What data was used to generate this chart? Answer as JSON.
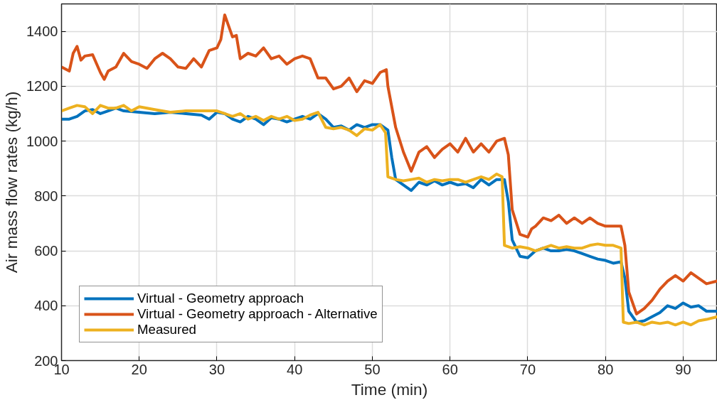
{
  "chart_data": {
    "type": "line",
    "xlabel": "Time (min)",
    "ylabel": "Air mass flow rates (kg/h)",
    "xlim": [
      10,
      94.4
    ],
    "ylim": [
      200,
      1500
    ],
    "xticks": [
      10,
      20,
      30,
      40,
      50,
      60,
      70,
      80,
      90
    ],
    "yticks": [
      200,
      400,
      600,
      800,
      1000,
      1200,
      1400
    ],
    "grid": true,
    "legend": "bottom left",
    "line_style": "solid",
    "series": [
      {
        "name": "Virtual - Geometry approach",
        "color": "#0072bd",
        "x": [
          10,
          11,
          12,
          13,
          14,
          15,
          16,
          17,
          18,
          20,
          22,
          24,
          26,
          28,
          29,
          30,
          31,
          32,
          33,
          34,
          35,
          36,
          37,
          38,
          39,
          40,
          41,
          42,
          43,
          44,
          45,
          46,
          47,
          48,
          49,
          50,
          51,
          52,
          52.5,
          53,
          54,
          55,
          56,
          57,
          58,
          59,
          60,
          61,
          62,
          63,
          64,
          65,
          66,
          67,
          67.5,
          68,
          69,
          70,
          71,
          72,
          73,
          74,
          75,
          76,
          77,
          78,
          79,
          80,
          81,
          82,
          82.5,
          83,
          84,
          85,
          86,
          87,
          88,
          89,
          90,
          91,
          92,
          93,
          94.4
        ],
        "values": [
          1080,
          1080,
          1090,
          1110,
          1115,
          1100,
          1110,
          1120,
          1110,
          1105,
          1100,
          1105,
          1100,
          1095,
          1080,
          1105,
          1100,
          1080,
          1070,
          1090,
          1080,
          1060,
          1085,
          1080,
          1070,
          1080,
          1090,
          1080,
          1100,
          1080,
          1050,
          1055,
          1040,
          1060,
          1050,
          1060,
          1060,
          1040,
          940,
          860,
          840,
          820,
          850,
          840,
          855,
          840,
          850,
          840,
          845,
          830,
          860,
          840,
          860,
          860,
          780,
          640,
          580,
          575,
          600,
          610,
          600,
          600,
          605,
          600,
          590,
          580,
          570,
          565,
          555,
          560,
          500,
          380,
          340,
          345,
          360,
          375,
          400,
          390,
          410,
          395,
          400,
          380,
          380
        ]
      },
      {
        "name": "Virtual - Geometry approach - Alternative",
        "color": "#d95319",
        "x": [
          10,
          11,
          11.5,
          12,
          12.5,
          13,
          14,
          15,
          15.5,
          16,
          17,
          18,
          19,
          20,
          21,
          22,
          23,
          24,
          25,
          26,
          27,
          28,
          29,
          30,
          30.5,
          31,
          31.5,
          32,
          32.5,
          33,
          34,
          35,
          36,
          37,
          38,
          39,
          40,
          41,
          42,
          43,
          44,
          45,
          46,
          47,
          48,
          49,
          50,
          51,
          51.8,
          52,
          53,
          54,
          55,
          56,
          57,
          58,
          59,
          60,
          61,
          62,
          63,
          64,
          65,
          66,
          67,
          67.5,
          68,
          69,
          70,
          70.5,
          71,
          72,
          73,
          74,
          75,
          76,
          77,
          78,
          79,
          80,
          81,
          82,
          82.5,
          83,
          84,
          85,
          86,
          87,
          88,
          89,
          90,
          91,
          92,
          93,
          94.4
        ],
        "values": [
          1270,
          1255,
          1320,
          1345,
          1295,
          1310,
          1315,
          1250,
          1225,
          1255,
          1270,
          1320,
          1290,
          1280,
          1265,
          1300,
          1320,
          1300,
          1270,
          1265,
          1300,
          1270,
          1330,
          1340,
          1370,
          1460,
          1420,
          1380,
          1385,
          1300,
          1320,
          1310,
          1340,
          1300,
          1310,
          1280,
          1300,
          1310,
          1300,
          1230,
          1230,
          1190,
          1200,
          1230,
          1180,
          1220,
          1210,
          1250,
          1260,
          1200,
          1050,
          960,
          890,
          960,
          980,
          940,
          970,
          990,
          960,
          1010,
          960,
          990,
          960,
          1000,
          1010,
          950,
          750,
          660,
          650,
          680,
          690,
          720,
          710,
          730,
          700,
          720,
          700,
          720,
          700,
          690,
          690,
          690,
          620,
          450,
          370,
          390,
          420,
          460,
          490,
          510,
          490,
          520,
          500,
          480,
          490
        ]
      },
      {
        "name": "Measured",
        "color": "#edb120",
        "x": [
          10,
          11,
          12,
          13,
          14,
          15,
          16,
          17,
          18,
          19,
          20,
          22,
          24,
          26,
          28,
          30,
          31,
          32,
          33,
          34,
          35,
          36,
          37,
          38,
          39,
          40,
          41,
          42,
          43,
          44,
          45,
          46,
          47,
          48,
          49,
          50,
          51,
          51.7,
          52,
          53,
          54,
          55,
          56,
          57,
          58,
          59,
          60,
          61,
          62,
          63,
          64,
          65,
          66,
          66.7,
          67,
          68,
          69,
          70,
          71,
          72,
          73,
          74,
          75,
          76,
          77,
          78,
          79,
          80,
          81,
          82,
          82.3,
          83,
          84,
          85,
          86,
          87,
          88,
          89,
          90,
          91,
          92,
          93,
          94.4
        ],
        "values": [
          1110,
          1120,
          1130,
          1125,
          1100,
          1130,
          1120,
          1120,
          1130,
          1110,
          1125,
          1115,
          1105,
          1110,
          1110,
          1110,
          1100,
          1090,
          1100,
          1080,
          1090,
          1075,
          1090,
          1080,
          1090,
          1075,
          1080,
          1095,
          1105,
          1050,
          1045,
          1050,
          1040,
          1020,
          1045,
          1040,
          1060,
          1030,
          870,
          860,
          855,
          860,
          865,
          850,
          860,
          855,
          860,
          860,
          850,
          860,
          870,
          860,
          880,
          870,
          620,
          610,
          615,
          610,
          600,
          610,
          620,
          610,
          615,
          610,
          610,
          620,
          625,
          620,
          620,
          610,
          340,
          335,
          340,
          330,
          340,
          335,
          340,
          330,
          340,
          330,
          345,
          350,
          360
        ]
      }
    ]
  }
}
